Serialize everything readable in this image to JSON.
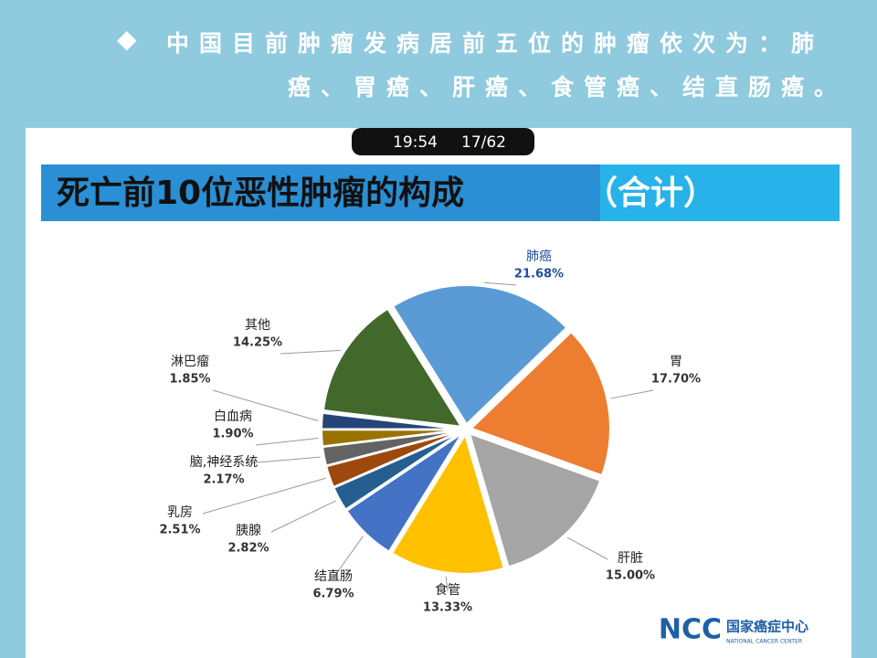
{
  "header": {
    "bullet_text": "中国目前肿瘤发病居前五位的肿瘤依次为：肺癌、胃癌、肝癌、食管癌、结直肠癌。"
  },
  "status_bar": {
    "time": "19:54",
    "page": "17/62"
  },
  "chart_data": {
    "type": "pie",
    "title": "死亡前10位恶性肿瘤的构成",
    "title_suffix": "（合计）",
    "categories": [
      "肺癌",
      "胃",
      "肝脏",
      "食管",
      "结直肠",
      "胰腺",
      "乳房",
      "脑,神经系统",
      "白血病",
      "淋巴瘤",
      "其他"
    ],
    "values": [
      21.68,
      17.7,
      15.0,
      13.33,
      6.79,
      2.82,
      2.51,
      2.17,
      1.9,
      1.85,
      14.25
    ],
    "value_labels": [
      "21.68%",
      "17.70%",
      "15.00%",
      "13.33%",
      "6.79%",
      "2.82%",
      "2.51%",
      "2.17%",
      "1.90%",
      "1.85%",
      "14.25%"
    ],
    "colors": [
      "#5b9bd5",
      "#ed7d31",
      "#a5a5a5",
      "#ffc000",
      "#4472c4",
      "#255e91",
      "#9e480e",
      "#636363",
      "#997300",
      "#264478",
      "#43682b"
    ]
  },
  "logo": {
    "abbr": "NCC",
    "name": "国家癌症中心",
    "subtitle": "NATIONAL CANCER CENTER"
  }
}
